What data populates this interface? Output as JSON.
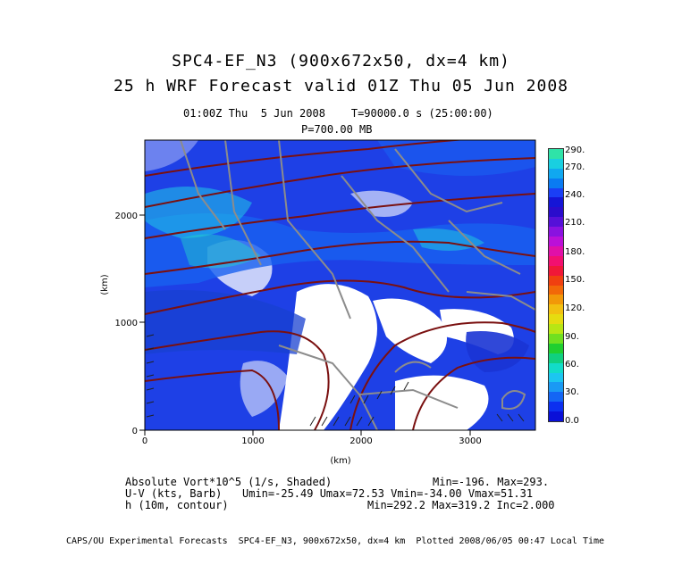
{
  "header": {
    "title_line1": "SPC4-EF_N3 (900x672x50, dx=4 km)",
    "title_line2": "25 h WRF Forecast valid 01Z Thu 05 Jun 2008",
    "time_line": "01:00Z Thu  5 Jun 2008    T=90000.0 s (25:00:00)",
    "pressure_line": "P=700.00 MB"
  },
  "axes": {
    "x_label": "(km)",
    "y_label": "(km)",
    "x_ticks": [
      "0",
      "1000",
      "2000",
      "3000"
    ],
    "y_ticks": [
      "0",
      "1000",
      "2000"
    ],
    "x_range_km": [
      0,
      3600
    ],
    "y_range_km": [
      0,
      2688
    ]
  },
  "colorbar": {
    "labels": [
      "290.",
      "270.",
      "240.",
      "210.",
      "180.",
      "150.",
      "120.",
      "90.",
      "60.",
      "30.",
      "0.0"
    ],
    "colors": [
      "#2fe3a8",
      "#19cfe0",
      "#10a8f0",
      "#0a7bf2",
      "#1a3ff5",
      "#1515d6",
      "#2a0ccc",
      "#5510d8",
      "#8a12e0",
      "#bb10d8",
      "#e010a8",
      "#f21070",
      "#f01838",
      "#f04010",
      "#f26808",
      "#f29808",
      "#f2c010",
      "#e6dc10",
      "#b8e614",
      "#70e020",
      "#20cf30",
      "#10d080",
      "#12dcc8",
      "#1cc6f0",
      "#1a9af4",
      "#1466f4",
      "#0c30f0",
      "#0a10d8"
    ],
    "color_scale_low": "#0a10d8",
    "color_scale_high": "#2fe3a8"
  },
  "legend": {
    "field1": "Absolute Vort*10^5 (1/s, Shaded)",
    "field1_stats": "Min=-196. Max=293.",
    "field2": "U-V (kts, Barb)",
    "field2_stats": "Umin=-25.49 Umax=72.53 Vmin=-34.00 Vmax=51.31",
    "field3": "h (10m, contour)",
    "field3_stats": "Min=292.2 Max=319.2 Inc=2.000"
  },
  "footer": {
    "text": "CAPS/OU Experimental Forecasts  SPC4-EF_N3, 900x672x50, dx=4 km  Plotted 2008/06/05 00:47 Local Time"
  },
  "map_colors": {
    "vorticity_low": "#1a2ad8",
    "vorticity_mid": "#1e66f2",
    "vorticity_high": "#23d3e0",
    "height_contour": "#7a1010",
    "state_border": "#8c8c8c",
    "wind_barb": "#202020"
  }
}
